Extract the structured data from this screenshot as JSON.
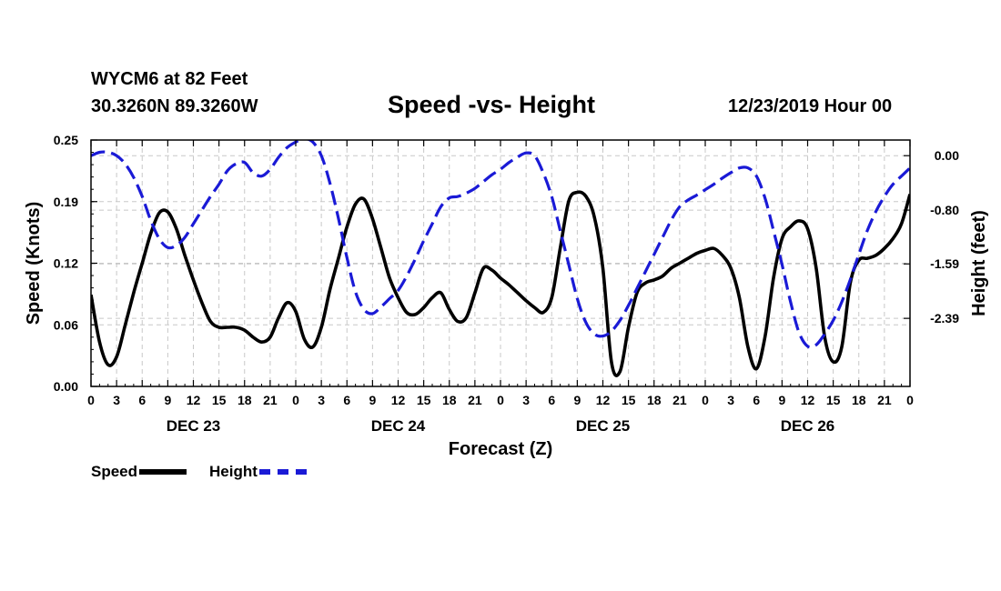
{
  "header": {
    "station": "WYCM6 at 82 Feet",
    "coords": "30.3260N 89.3260W",
    "title": "Speed -vs- Height",
    "date": "12/23/2019 Hour 00"
  },
  "chart_data": {
    "type": "line",
    "title": "Speed -vs- Height",
    "xlabel": "Forecast (Z)",
    "ylabel_left": "Speed (Knots)",
    "ylabel_right": "Height (feet)",
    "x_range_hours": [
      0,
      96
    ],
    "x_tick_step_hours": 3,
    "x_tick_labels": [
      "0",
      "3",
      "6",
      "9",
      "12",
      "15",
      "18",
      "21",
      "0",
      "3",
      "6",
      "9",
      "12",
      "15",
      "18",
      "21",
      "0",
      "3",
      "6",
      "9",
      "12",
      "15",
      "18",
      "21",
      "0",
      "3",
      "6",
      "9",
      "12",
      "15",
      "18",
      "21",
      "0"
    ],
    "day_labels": [
      {
        "label": "DEC 23",
        "hour": 12
      },
      {
        "label": "DEC 24",
        "hour": 36
      },
      {
        "label": "DEC 25",
        "hour": 60
      },
      {
        "label": "DEC 26",
        "hour": 84
      }
    ],
    "ylim_left": [
      0,
      0.25
    ],
    "yticks_left": [
      "0.00",
      "0.06",
      "0.12",
      "0.19",
      "0.25"
    ],
    "ylim_right": [
      -3.39,
      0.23
    ],
    "yticks_right": [
      {
        "label": "0.00",
        "value": 0.0
      },
      {
        "label": "-0.80",
        "value": -0.8
      },
      {
        "label": "-1.59",
        "value": -1.59
      },
      {
        "label": "-2.39",
        "value": -2.39
      }
    ],
    "grid": true,
    "series": [
      {
        "name": "Speed",
        "axis": "left",
        "color": "#000000",
        "style": "solid",
        "x": [
          0,
          1,
          2,
          3,
          4,
          5,
          6,
          7,
          8,
          9,
          10,
          11,
          12,
          13,
          14,
          15,
          16,
          17,
          18,
          19,
          20,
          21,
          22,
          23,
          24,
          25,
          26,
          27,
          28,
          29,
          30,
          31,
          32,
          33,
          34,
          35,
          36,
          37,
          38,
          39,
          40,
          41,
          42,
          43,
          44,
          45,
          46,
          47,
          48,
          49,
          50,
          51,
          52,
          53,
          54,
          55,
          56,
          57,
          58,
          59,
          60,
          61,
          62,
          63,
          64,
          65,
          66,
          67,
          68,
          69,
          70,
          71,
          72,
          73,
          74,
          75,
          76,
          77,
          78,
          79,
          80,
          81,
          82,
          83,
          84,
          85,
          86,
          87,
          88,
          89,
          90,
          91,
          92,
          93,
          94,
          95,
          96
        ],
        "values": [
          0.093,
          0.045,
          0.022,
          0.03,
          0.062,
          0.095,
          0.125,
          0.155,
          0.176,
          0.177,
          0.16,
          0.133,
          0.108,
          0.085,
          0.066,
          0.06,
          0.06,
          0.06,
          0.057,
          0.05,
          0.045,
          0.05,
          0.07,
          0.085,
          0.076,
          0.048,
          0.04,
          0.06,
          0.098,
          0.13,
          0.162,
          0.185,
          0.19,
          0.17,
          0.14,
          0.11,
          0.09,
          0.075,
          0.073,
          0.08,
          0.09,
          0.095,
          0.078,
          0.066,
          0.07,
          0.095,
          0.12,
          0.118,
          0.11,
          0.103,
          0.095,
          0.087,
          0.08,
          0.075,
          0.09,
          0.14,
          0.188,
          0.197,
          0.193,
          0.172,
          0.12,
          0.025,
          0.015,
          0.06,
          0.095,
          0.105,
          0.108,
          0.112,
          0.12,
          0.125,
          0.13,
          0.135,
          0.138,
          0.14,
          0.133,
          0.12,
          0.09,
          0.04,
          0.018,
          0.05,
          0.11,
          0.15,
          0.162,
          0.168,
          0.16,
          0.12,
          0.05,
          0.025,
          0.04,
          0.105,
          0.128,
          0.13,
          0.133,
          0.14,
          0.15,
          0.165,
          0.195
        ]
      },
      {
        "name": "Height",
        "axis": "right",
        "color": "#1a1ad6",
        "style": "dashed",
        "x": [
          0,
          1,
          2,
          3,
          4,
          5,
          6,
          7,
          8,
          9,
          10,
          11,
          12,
          13,
          14,
          15,
          16,
          17,
          18,
          19,
          20,
          21,
          22,
          23,
          24,
          25,
          26,
          27,
          28,
          29,
          30,
          31,
          32,
          33,
          34,
          35,
          36,
          37,
          38,
          39,
          40,
          41,
          42,
          43,
          44,
          45,
          46,
          47,
          48,
          49,
          50,
          51,
          52,
          53,
          54,
          55,
          56,
          57,
          58,
          59,
          60,
          61,
          62,
          63,
          64,
          65,
          66,
          67,
          68,
          69,
          70,
          71,
          72,
          73,
          74,
          75,
          76,
          77,
          78,
          79,
          80,
          81,
          82,
          83,
          84,
          85,
          86,
          87,
          88,
          89,
          90,
          91,
          92,
          93,
          94,
          95,
          96
        ],
        "values": [
          0.0,
          0.05,
          0.05,
          0.0,
          -0.12,
          -0.32,
          -0.6,
          -0.95,
          -1.22,
          -1.35,
          -1.32,
          -1.2,
          -1.0,
          -0.8,
          -0.6,
          -0.42,
          -0.22,
          -0.12,
          -0.1,
          -0.25,
          -0.3,
          -0.2,
          -0.02,
          0.12,
          0.2,
          0.25,
          0.2,
          0.0,
          -0.4,
          -0.92,
          -1.5,
          -2.0,
          -2.26,
          -2.32,
          -2.22,
          -2.1,
          -1.98,
          -1.77,
          -1.52,
          -1.25,
          -1.0,
          -0.75,
          -0.62,
          -0.6,
          -0.55,
          -0.48,
          -0.38,
          -0.28,
          -0.2,
          -0.1,
          -0.02,
          0.04,
          0.0,
          -0.25,
          -0.6,
          -1.1,
          -1.6,
          -2.1,
          -2.45,
          -2.62,
          -2.65,
          -2.58,
          -2.42,
          -2.2,
          -1.95,
          -1.7,
          -1.45,
          -1.2,
          -0.95,
          -0.75,
          -0.65,
          -0.58,
          -0.5,
          -0.42,
          -0.33,
          -0.25,
          -0.18,
          -0.18,
          -0.3,
          -0.62,
          -1.1,
          -1.6,
          -2.15,
          -2.6,
          -2.8,
          -2.78,
          -2.62,
          -2.42,
          -2.15,
          -1.82,
          -1.45,
          -1.1,
          -0.82,
          -0.6,
          -0.42,
          -0.3,
          -0.18
        ]
      }
    ]
  },
  "legend": {
    "speed_label": "Speed",
    "height_label": "Height"
  }
}
